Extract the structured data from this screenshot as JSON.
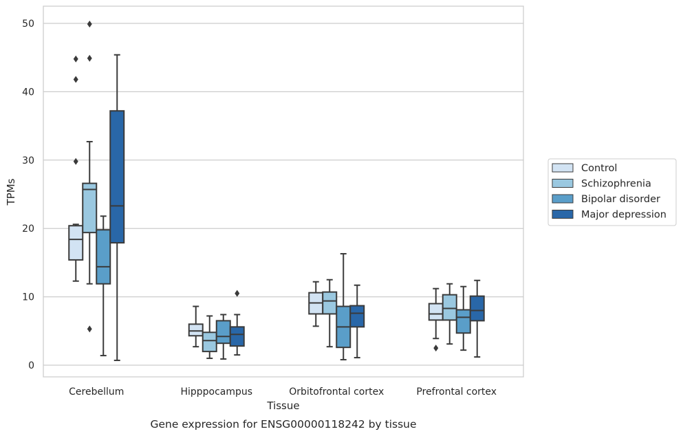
{
  "chart_data": {
    "type": "box",
    "xlabel": "Tissue",
    "ylabel": "TPMs",
    "caption": "Gene expression for ENSG00000118242 by tissue",
    "ylim": [
      -1.5,
      52.5
    ],
    "yticks": [
      0,
      10,
      20,
      30,
      40,
      50
    ],
    "grid": "horizontal",
    "legend_position": "right",
    "categories": [
      "Cerebellum",
      "Hipppocampus",
      "Orbitofrontal cortex",
      "Prefrontal cortex"
    ],
    "series": [
      {
        "name": "Control",
        "color": "#d2e3f3",
        "boxes": [
          {
            "whislo": 12.3,
            "q1": 15.4,
            "med": 18.4,
            "q3": 20.4,
            "whishi": 20.6,
            "fliers": [
              29.8,
              41.8,
              44.8
            ]
          },
          {
            "whislo": 2.7,
            "q1": 4.3,
            "med": 5.0,
            "q3": 6.0,
            "whishi": 8.6,
            "fliers": []
          },
          {
            "whislo": 5.7,
            "q1": 7.5,
            "med": 9.1,
            "q3": 10.6,
            "whishi": 12.2,
            "fliers": []
          },
          {
            "whislo": 3.9,
            "q1": 6.6,
            "med": 7.5,
            "q3": 9.0,
            "whishi": 11.2,
            "fliers": [
              2.5
            ]
          }
        ]
      },
      {
        "name": "Schizophrenia",
        "color": "#9ac8e0",
        "boxes": [
          {
            "whislo": 11.9,
            "q1": 19.4,
            "med": 25.7,
            "q3": 26.6,
            "whishi": 32.7,
            "fliers": [
              5.3,
              44.9,
              49.9
            ]
          },
          {
            "whislo": 1.0,
            "q1": 2.0,
            "med": 3.6,
            "q3": 4.8,
            "whishi": 7.2,
            "fliers": []
          },
          {
            "whislo": 2.7,
            "q1": 7.5,
            "med": 9.4,
            "q3": 10.7,
            "whishi": 12.5,
            "fliers": []
          },
          {
            "whislo": 3.1,
            "q1": 6.6,
            "med": 8.3,
            "q3": 10.3,
            "whishi": 11.9,
            "fliers": []
          }
        ]
      },
      {
        "name": "Bipolar disorder",
        "color": "#5a9ec9",
        "boxes": [
          {
            "whislo": 1.4,
            "q1": 11.9,
            "med": 14.4,
            "q3": 19.8,
            "whishi": 21.8,
            "fliers": []
          },
          {
            "whislo": 0.9,
            "q1": 3.2,
            "med": 4.2,
            "q3": 6.5,
            "whishi": 7.4,
            "fliers": []
          },
          {
            "whislo": 0.8,
            "q1": 2.6,
            "med": 5.6,
            "q3": 8.6,
            "whishi": 16.3,
            "fliers": []
          },
          {
            "whislo": 2.2,
            "q1": 4.7,
            "med": 7.0,
            "q3": 8.1,
            "whishi": 11.5,
            "fliers": []
          }
        ]
      },
      {
        "name": "Major depression",
        "color": "#2967a8",
        "boxes": [
          {
            "whislo": 0.7,
            "q1": 17.9,
            "med": 23.3,
            "q3": 37.2,
            "whishi": 45.4,
            "fliers": []
          },
          {
            "whislo": 1.5,
            "q1": 2.8,
            "med": 4.5,
            "q3": 5.6,
            "whishi": 7.4,
            "fliers": [
              10.5
            ]
          },
          {
            "whislo": 1.1,
            "q1": 5.6,
            "med": 7.6,
            "q3": 8.7,
            "whishi": 11.7,
            "fliers": []
          },
          {
            "whislo": 1.2,
            "q1": 6.5,
            "med": 8.0,
            "q3": 10.1,
            "whishi": 12.4,
            "fliers": []
          }
        ]
      }
    ]
  }
}
